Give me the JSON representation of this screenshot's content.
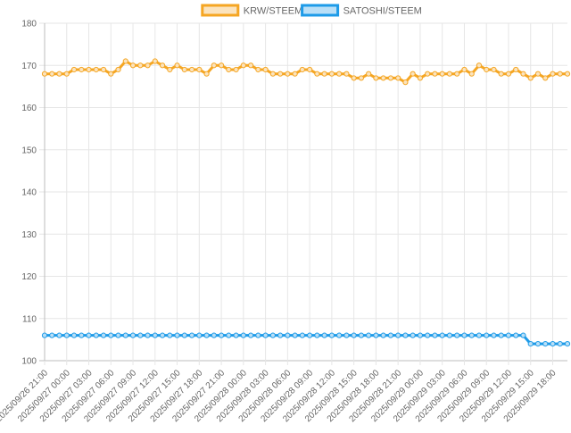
{
  "chart_data": {
    "type": "line",
    "title": "",
    "xlabel": "",
    "ylabel": "",
    "ylim": [
      100,
      180
    ],
    "yticks": [
      100,
      110,
      120,
      130,
      140,
      150,
      160,
      170,
      180
    ],
    "grid": true,
    "legend_position": "top-center",
    "x_tick_labels": [
      "2025/09/26 21:00",
      "2025/09/27 00:00",
      "2025/09/27 03:00",
      "2025/09/27 06:00",
      "2025/09/27 09:00",
      "2025/09/27 12:00",
      "2025/09/27 15:00",
      "2025/09/27 18:00",
      "2025/09/27 21:00",
      "2025/09/28 00:00",
      "2025/09/28 03:00",
      "2025/09/28 06:00",
      "2025/09/28 09:00",
      "2025/09/28 12:00",
      "2025/09/28 15:00",
      "2025/09/28 18:00",
      "2025/09/28 21:00",
      "2025/09/29 00:00",
      "2025/09/29 03:00",
      "2025/09/29 06:00",
      "2025/09/29 09:00",
      "2025/09/29 12:00",
      "2025/09/29 15:00",
      "2025/09/29 18:00"
    ],
    "series": [
      {
        "name": "KRW/STEEM",
        "color": "#f5a623",
        "fill": "#fbe3bd",
        "values": [
          168,
          168,
          168,
          168,
          169,
          169,
          169,
          169,
          169,
          168,
          169,
          171,
          170,
          170,
          170,
          171,
          170,
          169,
          170,
          169,
          169,
          169,
          168,
          170,
          170,
          169,
          169,
          170,
          170,
          169,
          169,
          168,
          168,
          168,
          168,
          169,
          169,
          168,
          168,
          168,
          168,
          168,
          167,
          167,
          168,
          167,
          167,
          167,
          167,
          166,
          168,
          167,
          168,
          168,
          168,
          168,
          168,
          169,
          168,
          170,
          169,
          169,
          168,
          168,
          169,
          168,
          167,
          168,
          167,
          168,
          168,
          168
        ]
      },
      {
        "name": "SATOSHI/STEEM",
        "color": "#1e9be8",
        "fill": "#b9dff7",
        "values": [
          106,
          106,
          106,
          106,
          106,
          106,
          106,
          106,
          106,
          106,
          106,
          106,
          106,
          106,
          106,
          106,
          106,
          106,
          106,
          106,
          106,
          106,
          106,
          106,
          106,
          106,
          106,
          106,
          106,
          106,
          106,
          106,
          106,
          106,
          106,
          106,
          106,
          106,
          106,
          106,
          106,
          106,
          106,
          106,
          106,
          106,
          106,
          106,
          106,
          106,
          106,
          106,
          106,
          106,
          106,
          106,
          106,
          106,
          106,
          106,
          106,
          106,
          106,
          106,
          106,
          106,
          104,
          104,
          104,
          104,
          104,
          104
        ]
      }
    ]
  }
}
